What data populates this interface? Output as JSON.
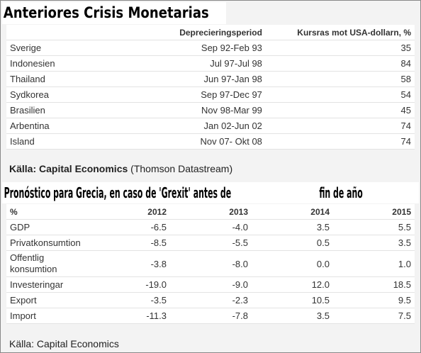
{
  "title1": "Anteriores Crisis Monetarias",
  "table1": {
    "header": [
      "Deprecieringsperiod",
      "Kursras mot USA-dollarn, %"
    ],
    "rows": [
      [
        "Sverige",
        "Sep 92-Feb 93",
        "35"
      ],
      [
        "Indonesien",
        "Jul 97-Jul 98",
        "84"
      ],
      [
        "Thailand",
        "Jun 97-Jan 98",
        "58"
      ],
      [
        "Sydkorea",
        "Sep 97-Dec 97",
        "54"
      ],
      [
        "Brasilien",
        "Nov 98-Mar 99",
        "45"
      ],
      [
        "Arbentina",
        "Jan 02-Jun 02",
        "74"
      ],
      [
        "Island",
        "Nov 07- Okt 08",
        "74"
      ]
    ]
  },
  "source1": {
    "bold": "Källa: Capital Economics",
    "rest": "(Thomson Datastream)"
  },
  "title2": {
    "main": "Pronóstico para Grecia, en caso de 'Grexit' antes de",
    "tail": "fin de año"
  },
  "table2": {
    "header": [
      "%",
      "2012",
      "2013",
      "2014",
      "2015"
    ],
    "rows": [
      [
        "GDP",
        "-6.5",
        "-4.0",
        "3.5",
        "5.5"
      ],
      [
        "Privatkonsumtion",
        "-8.5",
        "-5.5",
        "0.5",
        "3.5"
      ],
      [
        "Offentlig konsumtion",
        "-3.8",
        "-8.0",
        "0.0",
        "1.0"
      ],
      [
        "Investeringar",
        "-19.0",
        "-9.0",
        "12.0",
        "18.5"
      ],
      [
        "Export",
        "-3.5",
        "-2.3",
        "10.5",
        "9.5"
      ],
      [
        "Import",
        "-11.3",
        "-7.8",
        "3.5",
        "7.5"
      ]
    ]
  },
  "source2": "Källa: Capital Economics"
}
